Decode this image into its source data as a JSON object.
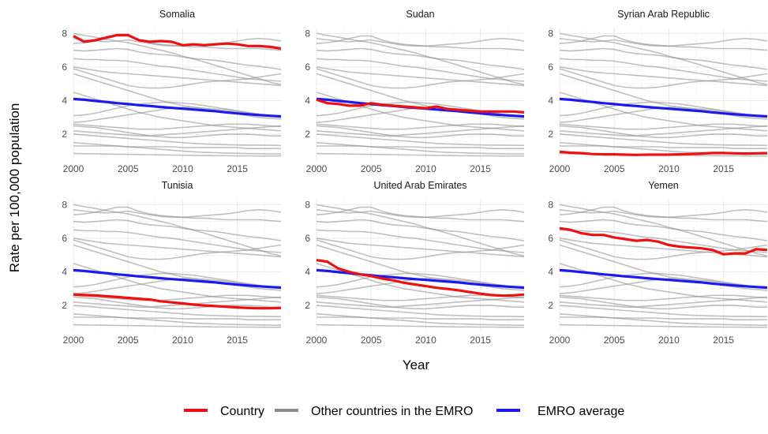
{
  "chart_data": {
    "type": "line",
    "xlabel": "Year",
    "ylabel": "Rate per 100,000  population",
    "xlim": [
      2000,
      2019
    ],
    "ylim": [
      0.5,
      8.3
    ],
    "xticks": [
      2000,
      2005,
      2010,
      2015
    ],
    "yticks": [
      2,
      4,
      6,
      8
    ],
    "grid": true,
    "legend": {
      "placement": "bottom",
      "items": [
        {
          "label": "Country",
          "color": "#ee1111"
        },
        {
          "label": "Other countries in the EMRO",
          "color": "#8c8c8c"
        },
        {
          "label": "EMRO average",
          "color": "#1a1aee"
        }
      ]
    },
    "years": [
      2000,
      2001,
      2002,
      2003,
      2004,
      2005,
      2006,
      2007,
      2008,
      2009,
      2010,
      2011,
      2012,
      2013,
      2014,
      2015,
      2016,
      2017,
      2018,
      2019
    ],
    "emro_average": [
      4.1,
      4.05,
      3.98,
      3.92,
      3.85,
      3.8,
      3.73,
      3.68,
      3.62,
      3.57,
      3.52,
      3.47,
      3.42,
      3.37,
      3.3,
      3.24,
      3.19,
      3.14,
      3.1,
      3.06
    ],
    "other_countries": [
      [
        8.0,
        7.88,
        7.78,
        7.65,
        7.55,
        7.45,
        7.3,
        7.15,
        7.0,
        6.85,
        6.65,
        6.48,
        6.3,
        6.1,
        5.9,
        5.7,
        5.5,
        5.3,
        5.1,
        4.95
      ],
      [
        7.7,
        7.62,
        7.55,
        7.5,
        7.55,
        7.62,
        7.5,
        7.4,
        7.3,
        7.25,
        7.25,
        7.3,
        7.35,
        7.4,
        7.45,
        7.55,
        7.65,
        7.7,
        7.65,
        7.55
      ],
      [
        7.4,
        7.45,
        7.55,
        7.7,
        7.85,
        7.85,
        7.6,
        7.45,
        7.35,
        7.3,
        7.25,
        7.2,
        7.2,
        7.15,
        7.1,
        7.1,
        7.1,
        7.1,
        7.05,
        7.0
      ],
      [
        7.0,
        6.95,
        7.0,
        7.05,
        7.1,
        7.05,
        6.9,
        6.8,
        6.75,
        6.7,
        6.6,
        6.5,
        6.45,
        6.4,
        6.3,
        6.2,
        6.1,
        6.05,
        5.95,
        5.85
      ],
      [
        6.5,
        6.45,
        6.45,
        6.4,
        6.4,
        6.35,
        6.25,
        6.15,
        6.05,
        6.0,
        5.9,
        5.8,
        5.7,
        5.6,
        5.5,
        5.4,
        5.3,
        5.25,
        5.2,
        5.15
      ],
      [
        6.0,
        5.9,
        5.8,
        5.7,
        5.65,
        5.6,
        5.55,
        5.5,
        5.45,
        5.4,
        5.35,
        5.3,
        5.25,
        5.2,
        5.15,
        5.1,
        5.05,
        5.0,
        4.95,
        4.9
      ],
      [
        5.9,
        5.7,
        5.5,
        5.3,
        5.1,
        4.9,
        4.8,
        4.75,
        4.75,
        4.8,
        4.9,
        5.0,
        5.1,
        5.15,
        5.2,
        5.25,
        5.3,
        5.4,
        5.5,
        5.6
      ],
      [
        5.6,
        5.4,
        5.2,
        5.0,
        4.8,
        4.6,
        4.4,
        4.2,
        4.0,
        3.85,
        3.7,
        3.6,
        3.5,
        3.4,
        3.3,
        3.2,
        3.1,
        3.0,
        2.95,
        2.9
      ],
      [
        4.5,
        4.3,
        4.1,
        3.9,
        3.7,
        3.5,
        3.3,
        3.15,
        3.0,
        2.9,
        2.8,
        2.7,
        2.6,
        2.5,
        2.45,
        2.4,
        2.35,
        2.3,
        2.25,
        2.2
      ],
      [
        3.1,
        3.15,
        3.25,
        3.4,
        3.55,
        3.7,
        3.8,
        3.85,
        3.9,
        3.9,
        3.85,
        3.8,
        3.7,
        3.6,
        3.5,
        3.4,
        3.3,
        3.2,
        3.1,
        3.0
      ],
      [
        2.7,
        2.75,
        2.85,
        2.95,
        3.05,
        3.15,
        3.25,
        3.35,
        3.45,
        3.55,
        3.6,
        3.6,
        3.55,
        3.5,
        3.45,
        3.35,
        3.25,
        3.15,
        3.1,
        3.05
      ],
      [
        2.6,
        2.55,
        2.5,
        2.45,
        2.4,
        2.35,
        2.3,
        2.3,
        2.3,
        2.35,
        2.4,
        2.45,
        2.5,
        2.55,
        2.6,
        2.6,
        2.6,
        2.55,
        2.5,
        2.45
      ],
      [
        2.5,
        2.45,
        2.4,
        2.3,
        2.2,
        2.1,
        2.0,
        1.9,
        1.85,
        1.8,
        1.8,
        1.85,
        1.9,
        1.95,
        2.0,
        2.0,
        2.0,
        1.95,
        1.9,
        1.9
      ],
      [
        2.2,
        2.15,
        2.1,
        2.05,
        2.0,
        1.95,
        1.9,
        1.9,
        1.95,
        2.0,
        2.05,
        2.1,
        2.15,
        2.2,
        2.25,
        2.3,
        2.35,
        2.4,
        2.45,
        2.5
      ],
      [
        2.0,
        1.95,
        1.9,
        1.85,
        1.8,
        1.75,
        1.7,
        1.65,
        1.6,
        1.55,
        1.5,
        1.45,
        1.42,
        1.4,
        1.38,
        1.36,
        1.35,
        1.35,
        1.34,
        1.33
      ],
      [
        1.5,
        1.45,
        1.4,
        1.35,
        1.3,
        1.25,
        1.2,
        1.15,
        1.1,
        1.05,
        1.0,
        0.95,
        0.92,
        0.9,
        0.88,
        0.86,
        0.85,
        0.84,
        0.83,
        0.82
      ],
      [
        1.3,
        1.3,
        1.3,
        1.3,
        1.3,
        1.25,
        1.25,
        1.25,
        1.25,
        1.25,
        1.2,
        1.2,
        1.2,
        1.2,
        1.2,
        1.2,
        1.15,
        1.15,
        1.15,
        1.15
      ],
      [
        0.85,
        0.84,
        0.83,
        0.82,
        0.81,
        0.8,
        0.79,
        0.78,
        0.77,
        0.76,
        0.75,
        0.74,
        0.73,
        0.72,
        0.72,
        0.71,
        0.71,
        0.7,
        0.7,
        0.7
      ]
    ],
    "panels": [
      {
        "title": "Somalia",
        "values": [
          7.85,
          7.5,
          7.6,
          7.75,
          7.9,
          7.9,
          7.6,
          7.5,
          7.55,
          7.5,
          7.3,
          7.35,
          7.3,
          7.35,
          7.4,
          7.35,
          7.25,
          7.25,
          7.2,
          7.1
        ]
      },
      {
        "title": "Sudan",
        "values": [
          4.05,
          3.85,
          3.8,
          3.7,
          3.7,
          3.85,
          3.75,
          3.7,
          3.65,
          3.6,
          3.55,
          3.65,
          3.5,
          3.45,
          3.4,
          3.35,
          3.35,
          3.35,
          3.35,
          3.3
        ]
      },
      {
        "title": "Syrian Arab Republic",
        "values": [
          0.95,
          0.9,
          0.87,
          0.82,
          0.8,
          0.8,
          0.78,
          0.77,
          0.78,
          0.78,
          0.78,
          0.8,
          0.82,
          0.85,
          0.88,
          0.88,
          0.86,
          0.85,
          0.86,
          0.87
        ]
      },
      {
        "title": "Tunisia",
        "values": [
          2.65,
          2.62,
          2.6,
          2.55,
          2.5,
          2.45,
          2.4,
          2.35,
          2.25,
          2.18,
          2.12,
          2.05,
          2.0,
          1.96,
          1.92,
          1.88,
          1.85,
          1.83,
          1.83,
          1.85
        ]
      },
      {
        "title": "United Arab Emirates",
        "values": [
          4.7,
          4.6,
          4.2,
          4.0,
          3.85,
          3.75,
          3.6,
          3.5,
          3.35,
          3.25,
          3.15,
          3.05,
          2.98,
          2.9,
          2.8,
          2.7,
          2.62,
          2.58,
          2.6,
          2.65
        ]
      },
      {
        "title": "Yemen",
        "values": [
          6.6,
          6.5,
          6.3,
          6.2,
          6.2,
          6.05,
          5.95,
          5.85,
          5.9,
          5.8,
          5.6,
          5.5,
          5.45,
          5.4,
          5.3,
          5.05,
          5.1,
          5.1,
          5.35,
          5.3
        ]
      }
    ]
  }
}
